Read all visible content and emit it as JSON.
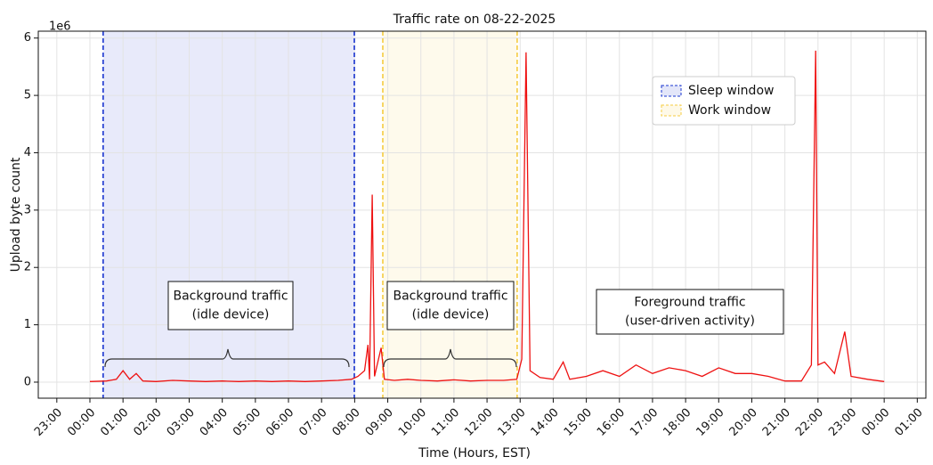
{
  "chart_data": {
    "type": "line",
    "title": "Traffic rate on 08-22-2025",
    "x_label": "Time (Hours, EST)",
    "y_label": "Upload byte count",
    "y_offset_label": "1e6",
    "xlim": [
      -1.56,
      25.26
    ],
    "ylim": [
      -0.28,
      6.12
    ],
    "xticks": [
      {
        "value": -1,
        "label": "23:00"
      },
      {
        "value": 0,
        "label": "00:00"
      },
      {
        "value": 1,
        "label": "01:00"
      },
      {
        "value": 2,
        "label": "02:00"
      },
      {
        "value": 3,
        "label": "03:00"
      },
      {
        "value": 4,
        "label": "04:00"
      },
      {
        "value": 5,
        "label": "05:00"
      },
      {
        "value": 6,
        "label": "06:00"
      },
      {
        "value": 7,
        "label": "07:00"
      },
      {
        "value": 8,
        "label": "08:00"
      },
      {
        "value": 9,
        "label": "09:00"
      },
      {
        "value": 10,
        "label": "10:00"
      },
      {
        "value": 11,
        "label": "11:00"
      },
      {
        "value": 12,
        "label": "12:00"
      },
      {
        "value": 13,
        "label": "13:00"
      },
      {
        "value": 14,
        "label": "14:00"
      },
      {
        "value": 15,
        "label": "15:00"
      },
      {
        "value": 16,
        "label": "16:00"
      },
      {
        "value": 17,
        "label": "17:00"
      },
      {
        "value": 18,
        "label": "18:00"
      },
      {
        "value": 19,
        "label": "19:00"
      },
      {
        "value": 20,
        "label": "20:00"
      },
      {
        "value": 21,
        "label": "21:00"
      },
      {
        "value": 22,
        "label": "22:00"
      },
      {
        "value": 23,
        "label": "23:00"
      },
      {
        "value": 24,
        "label": "00:00"
      },
      {
        "value": 25,
        "label": "01:00"
      }
    ],
    "yticks": [
      0,
      1,
      2,
      3,
      4,
      5,
      6
    ],
    "grid": true,
    "legend": "upper right",
    "spans": [
      {
        "name": "Sleep window",
        "start": 0.4,
        "end": 7.99,
        "color": "#1a35d0"
      },
      {
        "name": "Work window",
        "start": 8.85,
        "end": 12.91,
        "color": "#f5cc40"
      }
    ],
    "annotations": [
      {
        "lines": [
          "Background traffic",
          "(idle device)"
        ]
      },
      {
        "lines": [
          "Background traffic",
          "(idle device)"
        ]
      },
      {
        "lines": [
          "Foreground traffic",
          "(user-driven activity)"
        ]
      }
    ],
    "series": [
      {
        "name": "Upload byte count",
        "color": "#ee1111",
        "x": [
          0,
          0.5,
          0.8,
          1.0,
          1.2,
          1.4,
          1.6,
          2.0,
          2.5,
          3.0,
          3.5,
          4.0,
          4.5,
          5.0,
          5.5,
          6.0,
          6.5,
          7.0,
          7.5,
          7.9,
          8.1,
          8.3,
          8.4,
          8.45,
          8.53,
          8.6,
          8.8,
          8.9,
          9.2,
          9.6,
          10.0,
          10.5,
          11.0,
          11.5,
          12.0,
          12.5,
          12.9,
          13.05,
          13.18,
          13.3,
          13.6,
          14.0,
          14.3,
          14.5,
          15.0,
          15.5,
          16.0,
          16.5,
          17.0,
          17.5,
          18.0,
          18.5,
          19.0,
          19.5,
          20.0,
          20.5,
          21.0,
          21.5,
          21.8,
          21.93,
          22.0,
          22.2,
          22.5,
          22.81,
          23.0,
          23.5,
          24.0
        ],
        "values": [
          0.01,
          0.02,
          0.05,
          0.2,
          0.05,
          0.15,
          0.02,
          0.01,
          0.03,
          0.02,
          0.01,
          0.02,
          0.01,
          0.02,
          0.01,
          0.02,
          0.01,
          0.02,
          0.03,
          0.05,
          0.1,
          0.2,
          0.65,
          0.05,
          3.27,
          0.1,
          0.6,
          0.05,
          0.03,
          0.05,
          0.03,
          0.02,
          0.04,
          0.02,
          0.03,
          0.03,
          0.05,
          0.4,
          5.75,
          0.2,
          0.08,
          0.05,
          0.35,
          0.05,
          0.1,
          0.2,
          0.1,
          0.3,
          0.15,
          0.25,
          0.2,
          0.1,
          0.25,
          0.15,
          0.15,
          0.1,
          0.02,
          0.02,
          0.3,
          5.78,
          0.3,
          0.35,
          0.15,
          0.88,
          0.1,
          0.05,
          0.01
        ]
      }
    ]
  }
}
